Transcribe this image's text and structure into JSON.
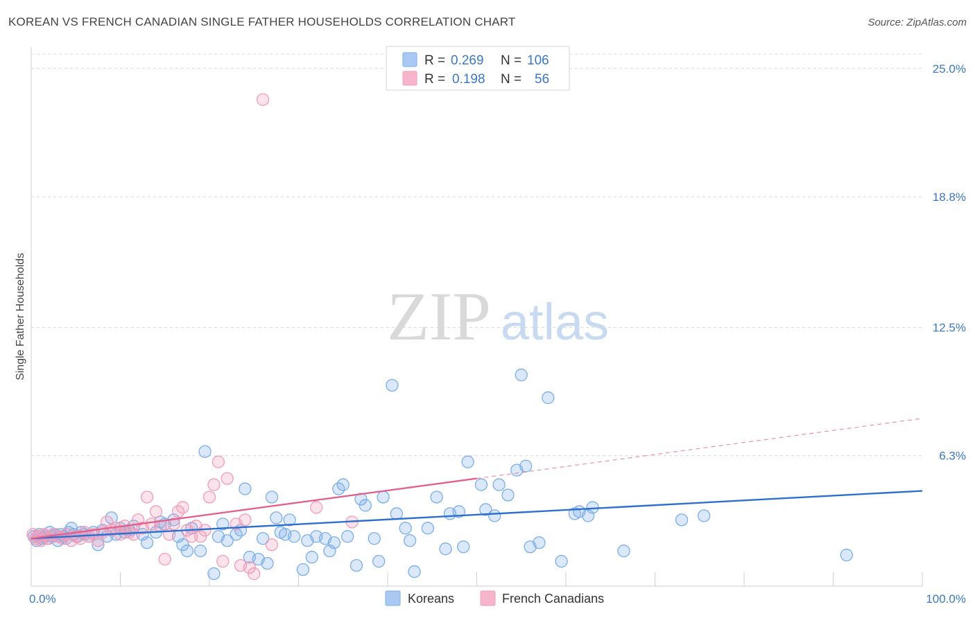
{
  "header": {
    "title": "KOREAN VS FRENCH CANADIAN SINGLE FATHER HOUSEHOLDS CORRELATION CHART",
    "source": "Source: ZipAtlas.com"
  },
  "watermark": {
    "zip": "ZIP",
    "atlas": "atlas"
  },
  "chart_data": {
    "type": "scatter",
    "ylabel": "Single Father Households",
    "xlim": [
      0,
      100
    ],
    "ylim": [
      0,
      25.8
    ],
    "y_ticks": [
      {
        "value": 6.3,
        "label": "6.3%"
      },
      {
        "value": 12.5,
        "label": "12.5%"
      },
      {
        "value": 18.8,
        "label": "18.8%"
      },
      {
        "value": 25.0,
        "label": "25.0%"
      }
    ],
    "x_tick_labels": {
      "min": "0.0%",
      "max": "100.0%"
    },
    "grid": "horizontal dashed",
    "legend_top": {
      "rows": [
        {
          "r_label": "R =",
          "r_value": "0.269",
          "n_label": "N =",
          "n_value": "106",
          "color": "#a9c9f2"
        },
        {
          "r_label": "R =",
          "r_value": "0.198",
          "n_label": "N =",
          "n_value": "56",
          "color": "#f6b5ca"
        }
      ]
    },
    "series": [
      {
        "name": "Koreans",
        "color": "#7aaee8",
        "line_color": "#2d6fd1",
        "trend": {
          "x0": 0,
          "y0": 2.3,
          "x1": 100,
          "y1": 4.6,
          "dashed_from": null
        },
        "points": [
          [
            0.3,
            2.4
          ],
          [
            0.6,
            2.2
          ],
          [
            0.9,
            2.5
          ],
          [
            1.2,
            2.3
          ],
          [
            1.5,
            2.4
          ],
          [
            1.8,
            2.3
          ],
          [
            2.1,
            2.6
          ],
          [
            2.4,
            2.4
          ],
          [
            2.7,
            2.5
          ],
          [
            3.0,
            2.2
          ],
          [
            3.3,
            2.5
          ],
          [
            3.6,
            2.4
          ],
          [
            3.9,
            2.3
          ],
          [
            4.2,
            2.6
          ],
          [
            4.5,
            2.8
          ],
          [
            4.8,
            2.5
          ],
          [
            5.2,
            2.4
          ],
          [
            5.6,
            2.6
          ],
          [
            6.0,
            2.5
          ],
          [
            6.5,
            2.4
          ],
          [
            7.0,
            2.6
          ],
          [
            7.5,
            2.0
          ],
          [
            8.0,
            2.7
          ],
          [
            8.5,
            2.4
          ],
          [
            9.0,
            3.3
          ],
          [
            9.5,
            2.5
          ],
          [
            10.0,
            2.8
          ],
          [
            10.5,
            2.6
          ],
          [
            11.0,
            2.7
          ],
          [
            11.5,
            2.9
          ],
          [
            12.5,
            2.5
          ],
          [
            13.0,
            2.1
          ],
          [
            14.0,
            2.6
          ],
          [
            14.5,
            3.1
          ],
          [
            15.0,
            3.0
          ],
          [
            16.0,
            3.2
          ],
          [
            16.5,
            2.4
          ],
          [
            17.0,
            2.0
          ],
          [
            17.5,
            1.7
          ],
          [
            18.0,
            2.8
          ],
          [
            19.0,
            1.7
          ],
          [
            19.5,
            6.5
          ],
          [
            20.5,
            0.6
          ],
          [
            21.0,
            2.4
          ],
          [
            21.5,
            3.0
          ],
          [
            22.0,
            2.2
          ],
          [
            23.0,
            2.5
          ],
          [
            23.5,
            2.7
          ],
          [
            24.0,
            4.7
          ],
          [
            24.5,
            1.4
          ],
          [
            25.5,
            1.3
          ],
          [
            26.0,
            2.3
          ],
          [
            26.5,
            1.1
          ],
          [
            27.0,
            4.3
          ],
          [
            27.5,
            3.3
          ],
          [
            28.0,
            2.6
          ],
          [
            28.5,
            2.5
          ],
          [
            29.0,
            3.2
          ],
          [
            29.5,
            2.4
          ],
          [
            30.5,
            0.8
          ],
          [
            31.0,
            2.2
          ],
          [
            31.5,
            1.4
          ],
          [
            32.0,
            2.4
          ],
          [
            33.0,
            2.3
          ],
          [
            33.5,
            1.7
          ],
          [
            34.0,
            2.1
          ],
          [
            34.5,
            4.7
          ],
          [
            35.0,
            4.9
          ],
          [
            35.5,
            2.4
          ],
          [
            36.5,
            1.0
          ],
          [
            37.0,
            4.2
          ],
          [
            37.5,
            3.9
          ],
          [
            38.5,
            2.3
          ],
          [
            39.0,
            1.2
          ],
          [
            39.5,
            4.3
          ],
          [
            40.5,
            9.7
          ],
          [
            41.0,
            3.5
          ],
          [
            42.0,
            2.8
          ],
          [
            42.5,
            2.2
          ],
          [
            43.0,
            0.7
          ],
          [
            44.5,
            2.8
          ],
          [
            45.5,
            4.3
          ],
          [
            46.5,
            1.8
          ],
          [
            47.0,
            3.5
          ],
          [
            48.0,
            3.6
          ],
          [
            48.5,
            1.9
          ],
          [
            49.0,
            6.0
          ],
          [
            50.5,
            4.9
          ],
          [
            51.0,
            3.7
          ],
          [
            52.0,
            3.4
          ],
          [
            52.5,
            4.9
          ],
          [
            53.5,
            4.4
          ],
          [
            54.5,
            5.6
          ],
          [
            55.0,
            10.2
          ],
          [
            55.5,
            5.8
          ],
          [
            56.0,
            1.9
          ],
          [
            57.0,
            2.1
          ],
          [
            58.0,
            9.1
          ],
          [
            59.5,
            1.2
          ],
          [
            61.0,
            3.5
          ],
          [
            61.5,
            3.6
          ],
          [
            62.5,
            3.4
          ],
          [
            63.0,
            3.8
          ],
          [
            66.5,
            1.7
          ],
          [
            73.0,
            3.2
          ],
          [
            75.5,
            3.4
          ],
          [
            91.5,
            1.5
          ]
        ]
      },
      {
        "name": "French Canadians",
        "color": "#f29bb8",
        "line_color": "#e2608d",
        "trend": {
          "x0": 0,
          "y0": 2.3,
          "x1": 50,
          "y1": 5.2,
          "dashed_to": {
            "x": 100,
            "y": 8.1
          }
        },
        "points": [
          [
            0.2,
            2.5
          ],
          [
            0.5,
            2.3
          ],
          [
            0.8,
            2.4
          ],
          [
            1.1,
            2.2
          ],
          [
            1.4,
            2.5
          ],
          [
            1.7,
            2.4
          ],
          [
            2.0,
            2.3
          ],
          [
            2.5,
            2.5
          ],
          [
            3.0,
            2.4
          ],
          [
            3.5,
            2.3
          ],
          [
            4.0,
            2.5
          ],
          [
            4.5,
            2.2
          ],
          [
            5.0,
            2.4
          ],
          [
            5.5,
            2.3
          ],
          [
            6.0,
            2.6
          ],
          [
            6.5,
            2.4
          ],
          [
            7.0,
            2.5
          ],
          [
            7.5,
            2.2
          ],
          [
            8.0,
            2.6
          ],
          [
            8.5,
            3.1
          ],
          [
            9.0,
            2.7
          ],
          [
            9.5,
            2.8
          ],
          [
            10.0,
            2.5
          ],
          [
            10.5,
            2.9
          ],
          [
            11.0,
            2.6
          ],
          [
            11.5,
            2.5
          ],
          [
            12.0,
            3.2
          ],
          [
            12.5,
            2.8
          ],
          [
            13.0,
            4.3
          ],
          [
            13.5,
            3.0
          ],
          [
            14.0,
            3.6
          ],
          [
            14.5,
            2.9
          ],
          [
            15.0,
            1.3
          ],
          [
            15.5,
            2.5
          ],
          [
            16.0,
            3.0
          ],
          [
            16.5,
            3.6
          ],
          [
            17.0,
            3.8
          ],
          [
            17.5,
            2.7
          ],
          [
            18.0,
            2.4
          ],
          [
            18.5,
            2.9
          ],
          [
            19.0,
            2.4
          ],
          [
            19.5,
            2.7
          ],
          [
            20.0,
            4.3
          ],
          [
            20.5,
            4.9
          ],
          [
            21.0,
            6.0
          ],
          [
            21.5,
            1.2
          ],
          [
            22.0,
            5.2
          ],
          [
            23.0,
            3.0
          ],
          [
            23.5,
            1.0
          ],
          [
            24.0,
            3.2
          ],
          [
            24.5,
            0.9
          ],
          [
            25.0,
            0.6
          ],
          [
            26.0,
            23.5
          ],
          [
            27.0,
            2.0
          ],
          [
            32.0,
            3.8
          ],
          [
            36.0,
            3.1
          ]
        ]
      }
    ]
  }
}
